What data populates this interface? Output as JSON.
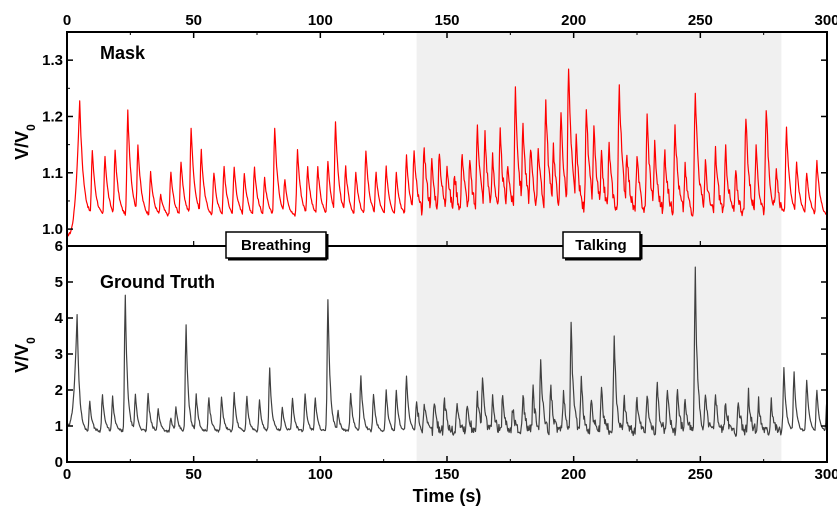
{
  "chart_data": {
    "type": "line",
    "xlabel": "Time (s)",
    "x_range": [
      0,
      300
    ],
    "x_ticks": [
      "0",
      "50",
      "100",
      "150",
      "200",
      "250",
      "300"
    ],
    "talking_region": [
      138,
      282
    ],
    "region_labels": {
      "breathing": "Breathing",
      "talking": "Talking"
    },
    "colors": {
      "mask": "#ff0000",
      "ground_truth": "#404040",
      "shade": "#f0f0f0"
    },
    "panels": [
      {
        "title": "Mask",
        "ylabel": "V/V",
        "ylabel_sub": "0",
        "ylim": [
          0.97,
          1.35
        ],
        "y_ticks": [
          "1.0",
          "1.1",
          "1.2",
          "1.3"
        ],
        "series": [
          {
            "baseline": 1.02,
            "start": 0.99,
            "peaks": [
              [
                5,
                1.23
              ],
              [
                10,
                1.14
              ],
              [
                15,
                1.13
              ],
              [
                19,
                1.14
              ],
              [
                24,
                1.21
              ],
              [
                28,
                1.15
              ],
              [
                33,
                1.1
              ],
              [
                37,
                1.06
              ],
              [
                41,
                1.1
              ],
              [
                45,
                1.12
              ],
              [
                49,
                1.18
              ],
              [
                53,
                1.14
              ],
              [
                58,
                1.1
              ],
              [
                62,
                1.11
              ],
              [
                66,
                1.11
              ],
              [
                70,
                1.1
              ],
              [
                74,
                1.11
              ],
              [
                78,
                1.09
              ],
              [
                82,
                1.18
              ],
              [
                86,
                1.09
              ],
              [
                91,
                1.14
              ],
              [
                95,
                1.11
              ],
              [
                99,
                1.11
              ],
              [
                103,
                1.12
              ],
              [
                106,
                1.19
              ],
              [
                110,
                1.11
              ],
              [
                114,
                1.1
              ],
              [
                118,
                1.14
              ],
              [
                122,
                1.1
              ],
              [
                126,
                1.11
              ],
              [
                130,
                1.1
              ],
              [
                134,
                1.13
              ],
              [
                137,
                1.14
              ],
              [
                141,
                1.15
              ],
              [
                144,
                1.12
              ],
              [
                147,
                1.14
              ],
              [
                150,
                1.12
              ],
              [
                153,
                1.1
              ],
              [
                156,
                1.14
              ],
              [
                159,
                1.12
              ],
              [
                162,
                1.19
              ],
              [
                165,
                1.17
              ],
              [
                168,
                1.13
              ],
              [
                171,
                1.17
              ],
              [
                174,
                1.12
              ],
              [
                177,
                1.25
              ],
              [
                180,
                1.19
              ],
              [
                183,
                1.15
              ],
              [
                186,
                1.15
              ],
              [
                189,
                1.23
              ],
              [
                192,
                1.15
              ],
              [
                195,
                1.21
              ],
              [
                198,
                1.29
              ],
              [
                201,
                1.16
              ],
              [
                205,
                1.22
              ],
              [
                208,
                1.18
              ],
              [
                211,
                1.13
              ],
              [
                214,
                1.15
              ],
              [
                218,
                1.26
              ],
              [
                221,
                1.14
              ],
              [
                225,
                1.13
              ],
              [
                229,
                1.2
              ],
              [
                232,
                1.15
              ],
              [
                236,
                1.14
              ],
              [
                240,
                1.19
              ],
              [
                244,
                1.11
              ],
              [
                248,
                1.25
              ],
              [
                252,
                1.12
              ],
              [
                256,
                1.14
              ],
              [
                260,
                1.14
              ],
              [
                264,
                1.1
              ],
              [
                268,
                1.2
              ],
              [
                272,
                1.14
              ],
              [
                276,
                1.22
              ],
              [
                280,
                1.1
              ],
              [
                284,
                1.18
              ],
              [
                288,
                1.12
              ],
              [
                292,
                1.1
              ],
              [
                296,
                1.12
              ]
            ]
          }
        ]
      },
      {
        "title": "Ground Truth",
        "ylabel": "V/V",
        "ylabel_sub": "0",
        "ylim": [
          0,
          6
        ],
        "y_ticks": [
          "0",
          "1",
          "2",
          "3",
          "4",
          "5",
          "6"
        ],
        "series": [
          {
            "baseline": 0.85,
            "start": 1.0,
            "peaks": [
              [
                4,
                4.1
              ],
              [
                9,
                1.7
              ],
              [
                14,
                1.9
              ],
              [
                18,
                1.8
              ],
              [
                23,
                4.6
              ],
              [
                27,
                1.9
              ],
              [
                32,
                1.9
              ],
              [
                36,
                1.5
              ],
              [
                41,
                1.2
              ],
              [
                43,
                1.5
              ],
              [
                47,
                3.8
              ],
              [
                51,
                1.9
              ],
              [
                56,
                1.8
              ],
              [
                61,
                1.8
              ],
              [
                66,
                1.9
              ],
              [
                71,
                1.8
              ],
              [
                76,
                1.7
              ],
              [
                80,
                2.6
              ],
              [
                85,
                1.5
              ],
              [
                89,
                1.8
              ],
              [
                94,
                1.9
              ],
              [
                98,
                1.8
              ],
              [
                103,
                4.5
              ],
              [
                107,
                1.4
              ],
              [
                112,
                1.9
              ],
              [
                116,
                2.4
              ],
              [
                121,
                1.9
              ],
              [
                126,
                2.0
              ],
              [
                130,
                2.0
              ],
              [
                134,
                2.4
              ],
              [
                138,
                1.8
              ],
              [
                141,
                1.6
              ],
              [
                145,
                1.7
              ],
              [
                149,
                1.8
              ],
              [
                154,
                1.7
              ],
              [
                158,
                1.6
              ],
              [
                162,
                1.9
              ],
              [
                164,
                2.4
              ],
              [
                168,
                1.8
              ],
              [
                172,
                1.9
              ],
              [
                176,
                1.5
              ],
              [
                180,
                1.9
              ],
              [
                184,
                2.0
              ],
              [
                187,
                2.8
              ],
              [
                191,
                2.2
              ],
              [
                196,
                1.9
              ],
              [
                199,
                3.9
              ],
              [
                203,
                2.3
              ],
              [
                207,
                1.8
              ],
              [
                211,
                2.0
              ],
              [
                216,
                3.5
              ],
              [
                220,
                1.8
              ],
              [
                225,
                1.8
              ],
              [
                229,
                1.9
              ],
              [
                233,
                2.1
              ],
              [
                237,
                2.0
              ],
              [
                241,
                2.0
              ],
              [
                244,
                1.8
              ],
              [
                248,
                5.3
              ],
              [
                252,
                1.9
              ],
              [
                256,
                2.0
              ],
              [
                260,
                1.7
              ],
              [
                265,
                1.7
              ],
              [
                269,
                1.9
              ],
              [
                273,
                1.7
              ],
              [
                278,
                1.8
              ],
              [
                283,
                2.6
              ],
              [
                287,
                2.5
              ],
              [
                292,
                2.3
              ],
              [
                296,
                2.0
              ],
              [
                300,
                1.8
              ]
            ]
          }
        ]
      }
    ]
  }
}
